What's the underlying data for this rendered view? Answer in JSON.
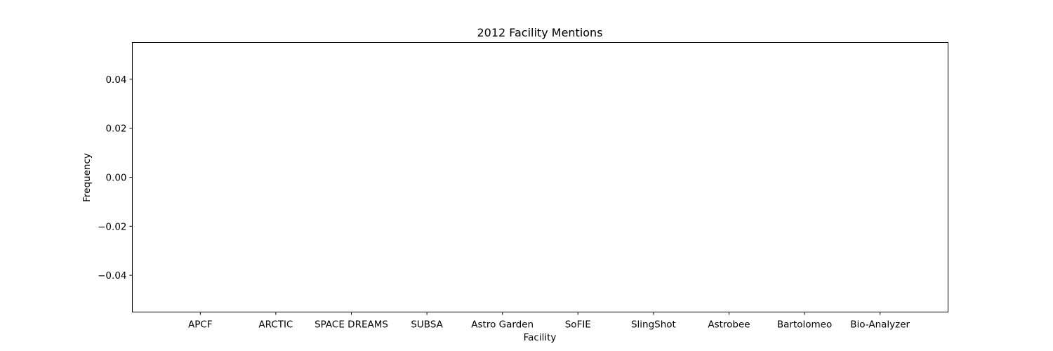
{
  "chart_data": {
    "type": "bar",
    "title": "2012 Facility Mentions",
    "xlabel": "Facility",
    "ylabel": "Frequency",
    "categories": [
      "APCF",
      "ARCTIC",
      "SPACE DREAMS",
      "SUBSA",
      "Astro Garden",
      "SoFIE",
      "SlingShot",
      "Astrobee",
      "Bartolomeo",
      "Bio-Analyzer"
    ],
    "values": [
      0,
      0,
      0,
      0,
      0,
      0,
      0,
      0,
      0,
      0
    ],
    "ylim": [
      -0.055,
      0.055
    ],
    "yticks": [
      -0.04,
      -0.02,
      0.0,
      0.02,
      0.04
    ],
    "ytick_labels": [
      "−0.04",
      "−0.02",
      "0.00",
      "0.02",
      "0.04"
    ],
    "grid": false,
    "legend": "none"
  }
}
